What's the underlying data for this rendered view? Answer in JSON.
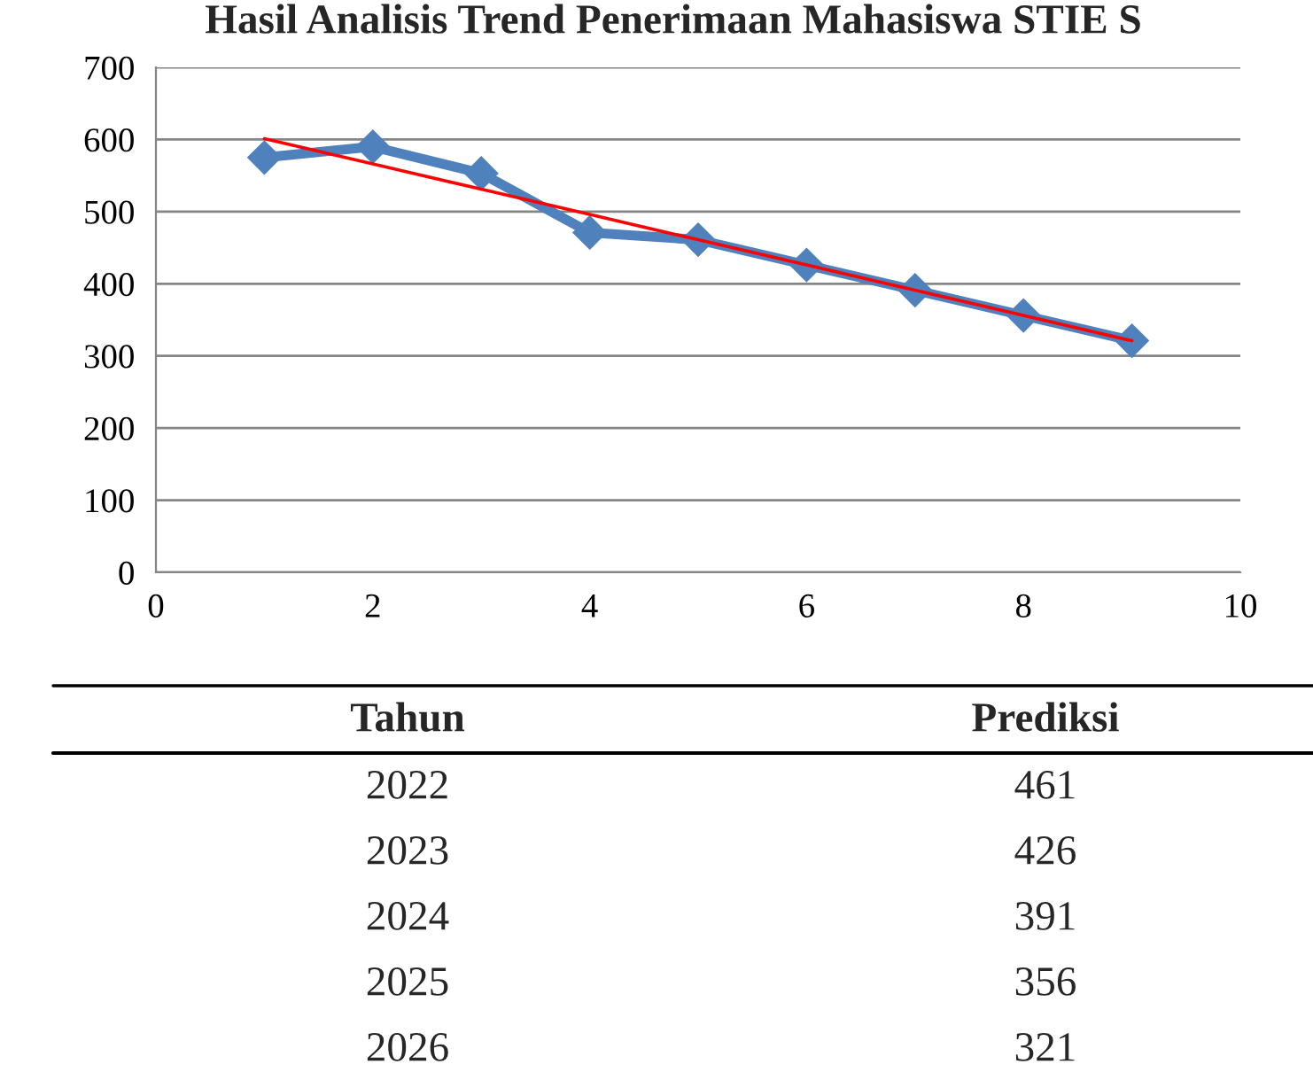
{
  "chart_data": {
    "type": "line",
    "title": "Hasil Analisis Trend Penerimaan Mahasiswa STIE S",
    "x": [
      1,
      2,
      3,
      4,
      5,
      6,
      7,
      8,
      9
    ],
    "series": [
      {
        "color": "#4f81bd",
        "values": [
          575,
          590,
          553,
          471,
          461,
          426,
          391,
          356,
          321
        ],
        "marker": "diamond"
      },
      {
        "color": "#ff0000",
        "values": [
          601,
          566,
          531,
          496,
          461,
          426,
          391,
          356,
          321
        ],
        "marker": "none"
      }
    ],
    "xlim": [
      0,
      10
    ],
    "xticks": [
      0,
      2,
      4,
      6,
      8,
      10
    ],
    "ylim": [
      0,
      700
    ],
    "yticks": [
      0,
      100,
      200,
      300,
      400,
      500,
      600,
      700
    ],
    "grid": "y",
    "legend": false,
    "annotations": [
      "Tahun",
      "Prediksi",
      "2022",
      "461",
      "2023",
      "426",
      "2024",
      "391",
      "2025",
      "356",
      "2026",
      "321"
    ]
  }
}
